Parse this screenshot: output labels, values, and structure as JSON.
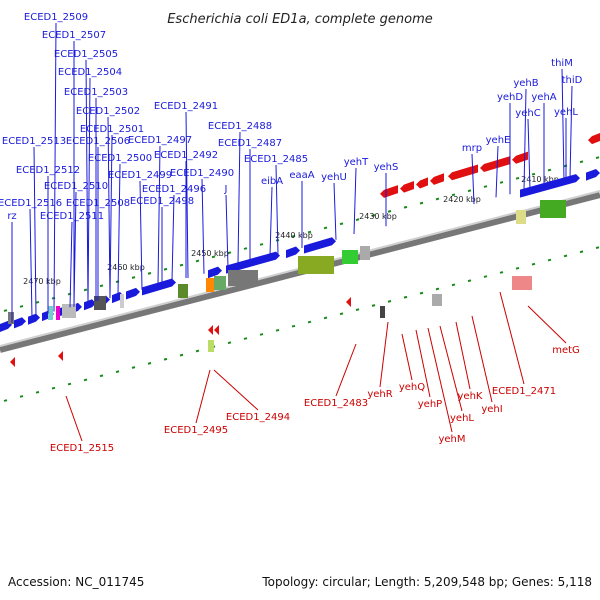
{
  "title": "Escherichia coli ED1a, complete genome",
  "accession": "Accession: NC_011745",
  "topology": "Topology: circular; Length: 5,209,548 bp; Genes: 5,118",
  "colors": {
    "forward_gene": "#1a1adc",
    "reverse_gene": "#e01010",
    "forward_label": "#1a1adc",
    "reverse_label": "#cc0000",
    "backbone": "#888888",
    "tick": "#1a8a1a"
  },
  "ticks": [
    "2410 kbp",
    "2420 kbp",
    "2430 kbp",
    "2440 kbp",
    "2450 kbp",
    "2460 kbp",
    "2470 kbp"
  ],
  "forward_labels": [
    "ECED1_2509",
    "ECED1_2507",
    "ECED1_2505",
    "ECED1_2504",
    "ECED1_2503",
    "ECED1_2502",
    "ECED1_2501",
    "ECED1_2506",
    "ECED1_2513",
    "ECED1_2500",
    "ECED1_2512",
    "ECED1_2499",
    "ECED1_2510",
    "ECED1_2508",
    "ECED1_2516",
    "ECED1_2511",
    "rz",
    "ECED1_2491",
    "ECED1_2497",
    "ECED1_2492",
    "ECED1_2490",
    "ECED1_2496",
    "ECED1_2498",
    "J",
    "ECED1_2488",
    "ECED1_2487",
    "ECED1_2485",
    "eibA",
    "eaaA",
    "yehU",
    "yehT",
    "yehS",
    "mrp",
    "yehE",
    "yehD",
    "yehC",
    "yehB",
    "yehA",
    "thiM",
    "thiD",
    "yehL"
  ],
  "reverse_labels": [
    "ECED1_2515",
    "ECED1_2495",
    "ECED1_2494",
    "ECED1_2483",
    "yehR",
    "yehQ",
    "yehP",
    "yehM",
    "yehL",
    "yehK",
    "yehI",
    "ECED1_2471",
    "metG"
  ]
}
